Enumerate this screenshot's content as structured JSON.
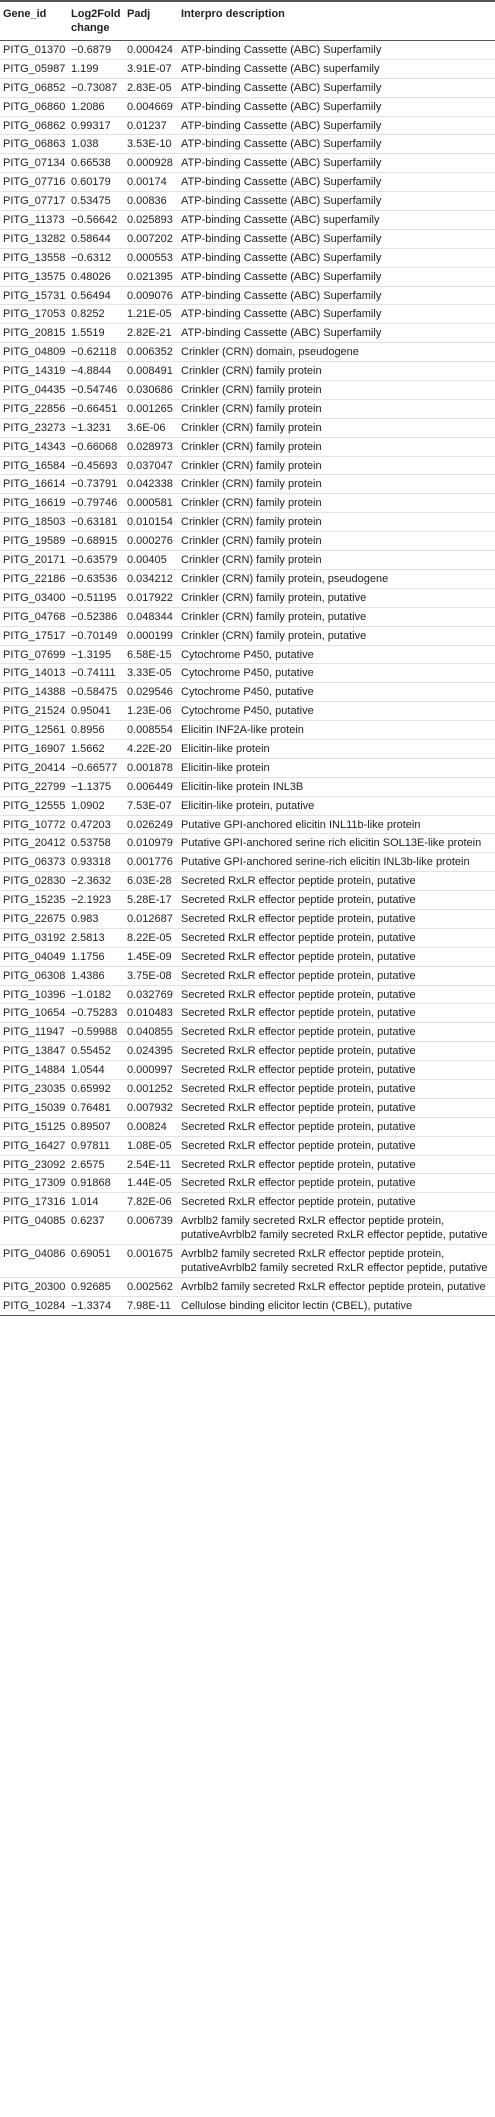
{
  "table": {
    "header": [
      "Gene_id",
      "Log2Fold change",
      "Padj",
      "Interpro description"
    ],
    "rows": [
      [
        "PITG_01370",
        "−0.6879",
        "0.000424",
        "ATP-binding Cassette (ABC) Superfamily"
      ],
      [
        "PITG_05987",
        "1.199",
        "3.91E-07",
        "ATP-binding Cassette (ABC) superfamily"
      ],
      [
        "PITG_06852",
        "−0.73087",
        "2.83E-05",
        "ATP-binding Cassette (ABC) Superfamily"
      ],
      [
        "PITG_06860",
        "1.2086",
        "0.004669",
        "ATP-binding Cassette (ABC) Superfamily"
      ],
      [
        "PITG_06862",
        "0.99317",
        "0.01237",
        "ATP-binding Cassette (ABC) Superfamily"
      ],
      [
        "PITG_06863",
        "1.038",
        "3.53E-10",
        "ATP-binding Cassette (ABC) Superfamily"
      ],
      [
        "PITG_07134",
        "0.66538",
        "0.000928",
        "ATP-binding Cassette (ABC) Superfamily"
      ],
      [
        "PITG_07716",
        "0.60179",
        "0.00174",
        "ATP-binding Cassette (ABC) Superfamily"
      ],
      [
        "PITG_07717",
        "0.53475",
        "0.00836",
        "ATP-binding Cassette (ABC) Superfamily"
      ],
      [
        "PITG_11373",
        "−0.56642",
        "0.025893",
        "ATP-binding Cassette (ABC) superfamily"
      ],
      [
        "PITG_13282",
        "0.58644",
        "0.007202",
        "ATP-binding Cassette (ABC) Superfamily"
      ],
      [
        "PITG_13558",
        "−0.6312",
        "0.000553",
        "ATP-binding Cassette (ABC) Superfamily"
      ],
      [
        "PITG_13575",
        "0.48026",
        "0.021395",
        "ATP-binding Cassette (ABC) Superfamily"
      ],
      [
        "PITG_15731",
        "0.56494",
        "0.009076",
        "ATP-binding Cassette (ABC) Superfamily"
      ],
      [
        "PITG_17053",
        "0.8252",
        "1.21E-05",
        "ATP-binding Cassette (ABC) Superfamily"
      ],
      [
        "PITG_20815",
        "1.5519",
        "2.82E-21",
        "ATP-binding Cassette (ABC) Superfamily"
      ],
      [
        "PITG_04809",
        "−0.62118",
        "0.006352",
        "Crinkler (CRN) domain, pseudogene"
      ],
      [
        "PITG_14319",
        "−4.8844",
        "0.008491",
        "Crinkler (CRN) family protein"
      ],
      [
        "PITG_04435",
        "−0.54746",
        "0.030686",
        "Crinkler (CRN) family protein"
      ],
      [
        "PITG_22856",
        "−0.66451",
        "0.001265",
        "Crinkler (CRN) family protein"
      ],
      [
        "PITG_23273",
        "−1.3231",
        "3.6E-06",
        "Crinkler (CRN) family protein"
      ],
      [
        "PITG_14343",
        "−0.66068",
        "0.028973",
        "Crinkler (CRN) family protein"
      ],
      [
        "PITG_16584",
        "−0.45693",
        "0.037047",
        "Crinkler (CRN) family protein"
      ],
      [
        "PITG_16614",
        "−0.73791",
        "0.042338",
        "Crinkler (CRN) family protein"
      ],
      [
        "PITG_16619",
        "−0.79746",
        "0.000581",
        "Crinkler (CRN) family protein"
      ],
      [
        "PITG_18503",
        "−0.63181",
        "0.010154",
        "Crinkler (CRN) family protein"
      ],
      [
        "PITG_19589",
        "−0.68915",
        "0.000276",
        "Crinkler (CRN) family protein"
      ],
      [
        "PITG_20171",
        "−0.63579",
        "0.00405",
        "Crinkler (CRN) family protein"
      ],
      [
        "PITG_22186",
        "−0.63536",
        "0.034212",
        "Crinkler (CRN) family protein, pseudogene"
      ],
      [
        "PITG_03400",
        "−0.51195",
        "0.017922",
        "Crinkler (CRN) family protein, putative"
      ],
      [
        "PITG_04768",
        "−0.52386",
        "0.048344",
        "Crinkler (CRN) family protein, putative"
      ],
      [
        "PITG_17517",
        "−0.70149",
        "0.000199",
        "Crinkler (CRN) family protein, putative"
      ],
      [
        "PITG_07699",
        "−1.3195",
        "6.58E-15",
        "Cytochrome P450, putative"
      ],
      [
        "PITG_14013",
        "−0.74111",
        "3.33E-05",
        "Cytochrome P450, putative"
      ],
      [
        "PITG_14388",
        "−0.58475",
        "0.029546",
        "Cytochrome P450, putative"
      ],
      [
        "PITG_21524",
        "0.95041",
        "1.23E-06",
        "Cytochrome P450, putative"
      ],
      [
        "PITG_12561",
        "0.8956",
        "0.008554",
        "Elicitin INF2A-like protein"
      ],
      [
        "PITG_16907",
        "1.5662",
        "4.22E-20",
        "Elicitin-like protein"
      ],
      [
        "PITG_20414",
        "−0.66577",
        "0.001878",
        "Elicitin-like protein"
      ],
      [
        "PITG_22799",
        "−1.1375",
        "0.006449",
        "Elicitin-like protein INL3B"
      ],
      [
        "PITG_12555",
        "1.0902",
        "7.53E-07",
        "Elicitin-like protein, putative"
      ],
      [
        "PITG_10772",
        "0.47203",
        "0.026249",
        "Putative GPI-anchored elicitin INL11b-like protein"
      ],
      [
        "PITG_20412",
        "0.53758",
        "0.010979",
        "Putative GPI-anchored serine rich elicitin SOL13E-like protein"
      ],
      [
        "PITG_06373",
        "0.93318",
        "0.001776",
        "Putative GPI-anchored serine-rich elicitin INL3b-like protein"
      ],
      [
        "PITG_02830",
        "−2.3632",
        "6.03E-28",
        "Secreted RxLR effector peptide protein, putative"
      ],
      [
        "PITG_15235",
        "−2.1923",
        "5.28E-17",
        "Secreted RxLR effector peptide protein, putative"
      ],
      [
        "PITG_22675",
        "0.983",
        "0.012687",
        "Secreted RxLR effector peptide protein, putative"
      ],
      [
        "PITG_03192",
        "2.5813",
        "8.22E-05",
        "Secreted RxLR effector peptide protein, putative"
      ],
      [
        "PITG_04049",
        "1.1756",
        "1.45E-09",
        "Secreted RxLR effector peptide protein, putative"
      ],
      [
        "PITG_06308",
        "1.4386",
        "3.75E-08",
        "Secreted RxLR effector peptide protein, putative"
      ],
      [
        "PITG_10396",
        "−1.0182",
        "0.032769",
        "Secreted RxLR effector peptide protein, putative"
      ],
      [
        "PITG_10654",
        "−0.75283",
        "0.010483",
        "Secreted RxLR effector peptide protein, putative"
      ],
      [
        "PITG_11947",
        "−0.59988",
        "0.040855",
        "Secreted RxLR effector peptide protein, putative"
      ],
      [
        "PITG_13847",
        "0.55452",
        "0.024395",
        "Secreted RxLR effector peptide protein, putative"
      ],
      [
        "PITG_14884",
        "1.0544",
        "0.000997",
        "Secreted RxLR effector peptide protein, putative"
      ],
      [
        "PITG_23035",
        "0.65992",
        "0.001252",
        "Secreted RxLR effector peptide protein, putative"
      ],
      [
        "PITG_15039",
        "0.76481",
        "0.007932",
        "Secreted RxLR effector peptide protein, putative"
      ],
      [
        "PITG_15125",
        "0.89507",
        "0.00824",
        "Secreted RxLR effector peptide protein, putative"
      ],
      [
        "PITG_16427",
        "0.97811",
        "1.08E-05",
        "Secreted RxLR effector peptide protein, putative"
      ],
      [
        "PITG_23092",
        "2.6575",
        "2.54E-11",
        "Secreted RxLR effector peptide protein, putative"
      ],
      [
        "PITG_17309",
        "0.91868",
        "1.44E-05",
        "Secreted RxLR effector peptide protein, putative"
      ],
      [
        "PITG_17316",
        "1.014",
        "7.82E-06",
        "Secreted RxLR effector peptide protein, putative"
      ],
      [
        "PITG_04085",
        "0.6237",
        "0.006739",
        "Avrblb2 family secreted RxLR effector peptide protein, putativeAvrblb2 family secreted RxLR effector peptide, putative"
      ],
      [
        "PITG_04086",
        "0.69051",
        "0.001675",
        "Avrblb2 family secreted RxLR effector peptide protein, putativeAvrblb2 family secreted RxLR effector peptide, putative"
      ],
      [
        "PITG_20300",
        "0.92685",
        "0.002562",
        "Avrblb2 family secreted RxLR effector peptide protein, putative"
      ],
      [
        "PITG_10284",
        "−1.3374",
        "7.98E-11",
        "Cellulose binding elicitor lectin (CBEL), putative"
      ]
    ]
  }
}
